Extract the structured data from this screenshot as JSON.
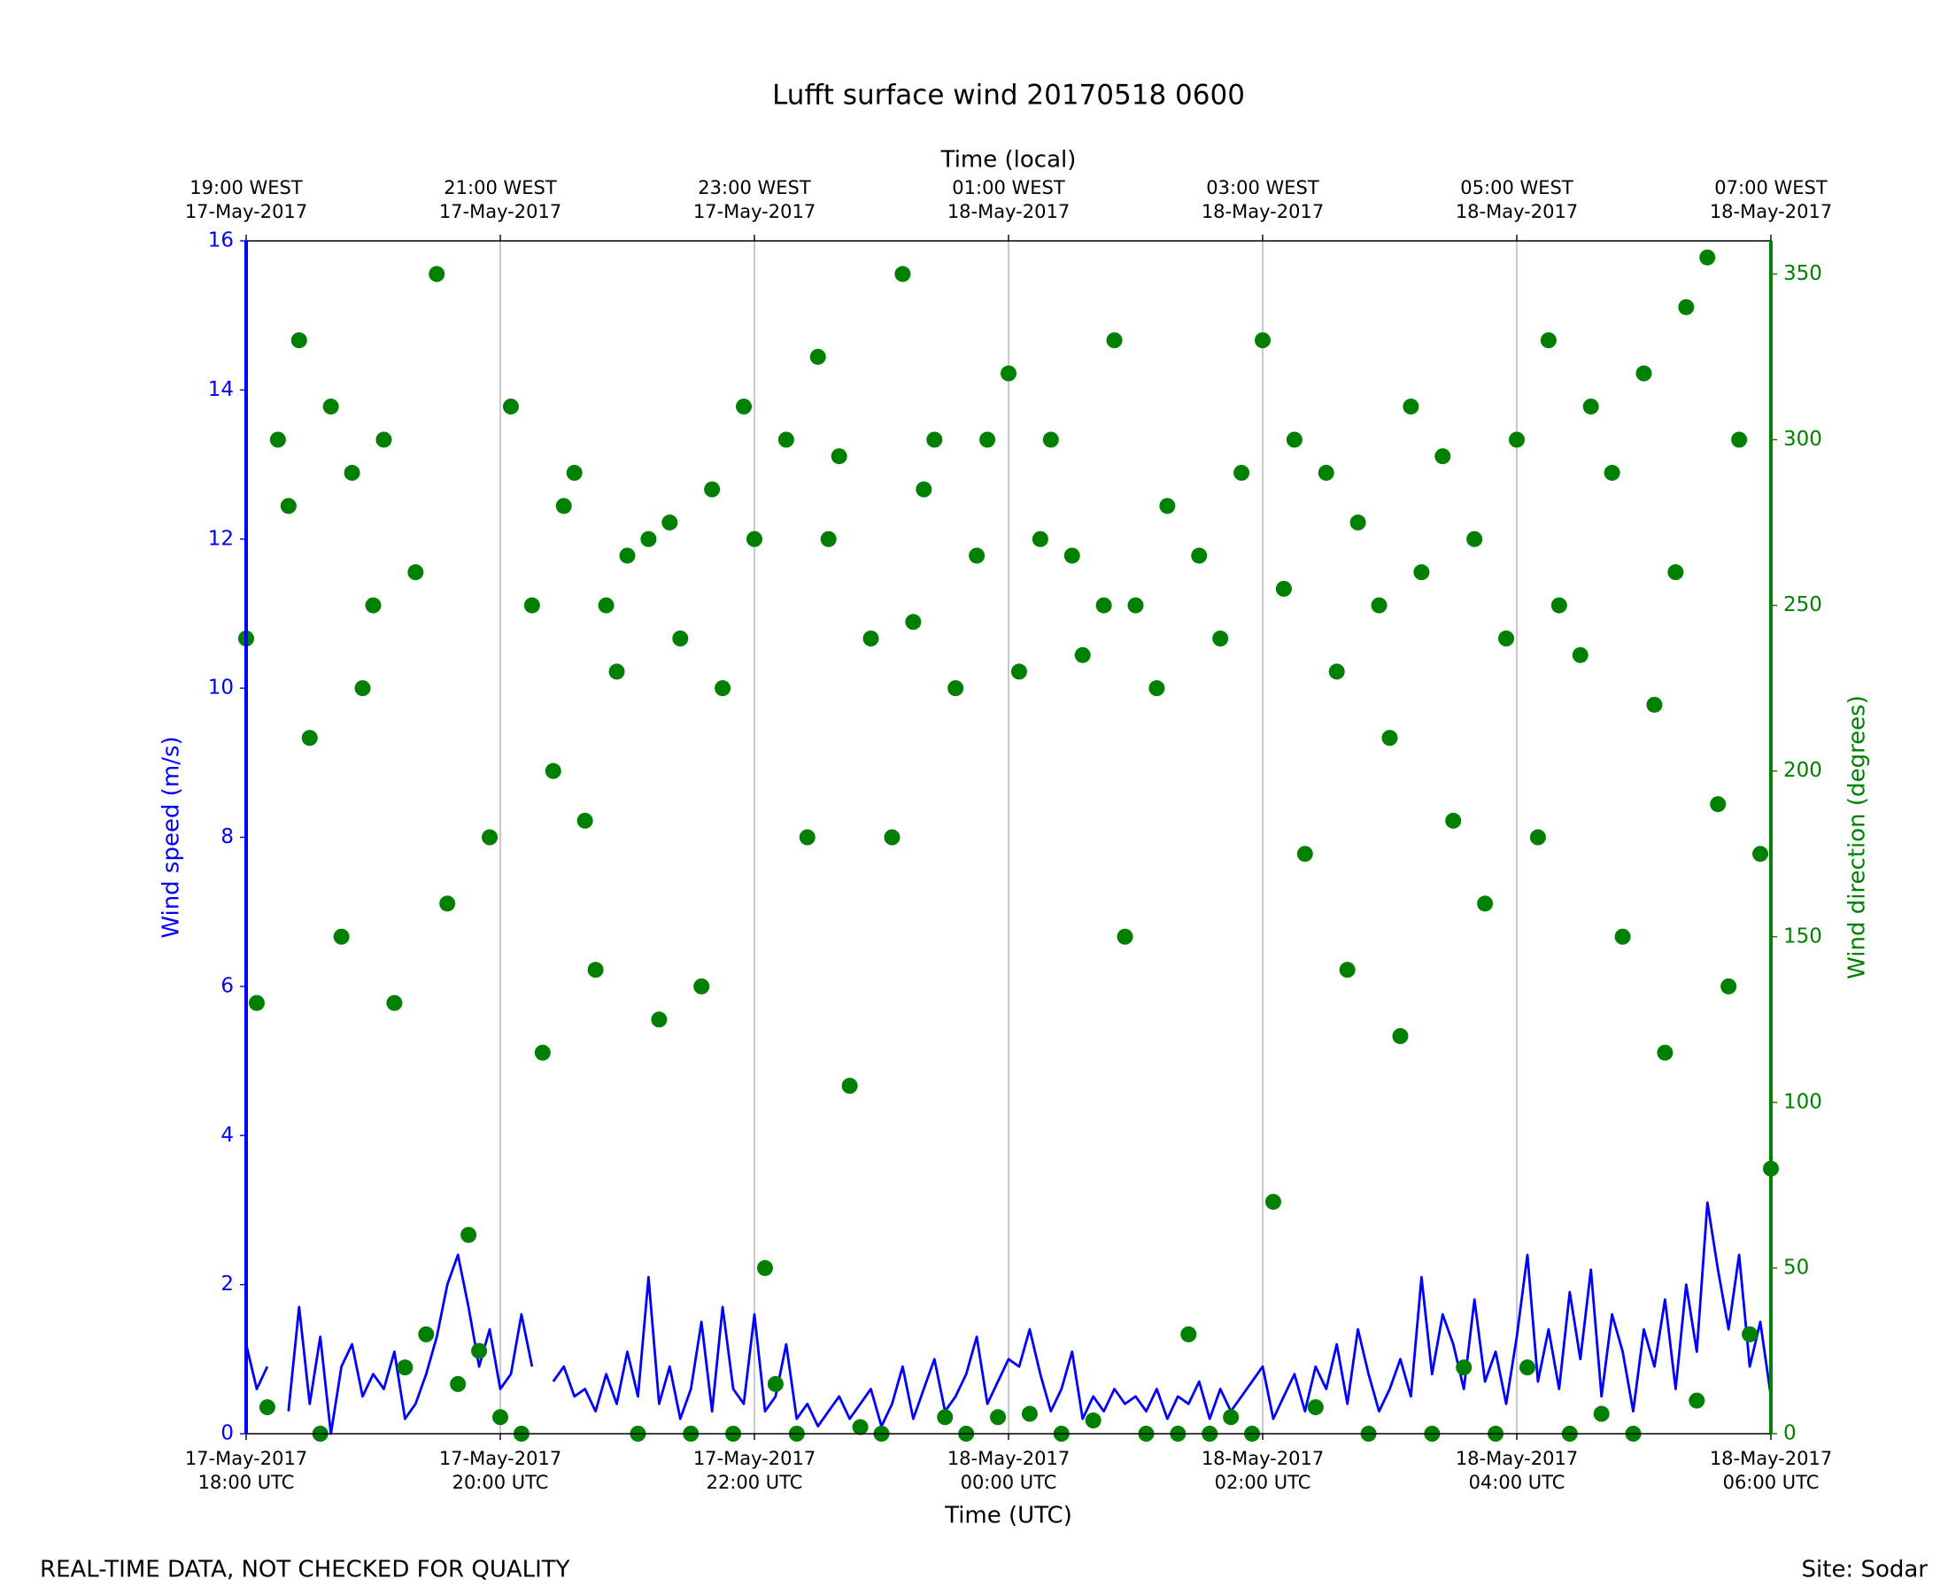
{
  "chart_data": {
    "type": "line",
    "title": "Lufft surface wind 20170518 0600",
    "xlabel": "Time (UTC)",
    "x2label": "Time (local)",
    "ylabel": "Wind speed (m/s)",
    "y2label": "Wind direction (degrees)",
    "footer_left": "REAL-TIME DATA, NOT CHECKED FOR QUALITY",
    "footer_right": "Site: Sodar",
    "xgrid": true,
    "xlim": [
      "2017-05-17 18:00",
      "2017-05-18 06:00"
    ],
    "xticks": [
      {
        "value": "2017-05-17 18:00",
        "label": [
          "17-May-2017",
          "18:00 UTC"
        ]
      },
      {
        "value": "2017-05-17 20:00",
        "label": [
          "17-May-2017",
          "20:00 UTC"
        ]
      },
      {
        "value": "2017-05-17 22:00",
        "label": [
          "17-May-2017",
          "22:00 UTC"
        ]
      },
      {
        "value": "2017-05-18 00:00",
        "label": [
          "18-May-2017",
          "00:00 UTC"
        ]
      },
      {
        "value": "2017-05-18 02:00",
        "label": [
          "18-May-2017",
          "02:00 UTC"
        ]
      },
      {
        "value": "2017-05-18 04:00",
        "label": [
          "18-May-2017",
          "04:00 UTC"
        ]
      },
      {
        "value": "2017-05-18 06:00",
        "label": [
          "18-May-2017",
          "06:00 UTC"
        ]
      }
    ],
    "x2ticks": [
      {
        "value": "2017-05-17 18:00",
        "label": [
          "19:00 WEST",
          "17-May-2017"
        ]
      },
      {
        "value": "2017-05-17 20:00",
        "label": [
          "21:00 WEST",
          "17-May-2017"
        ]
      },
      {
        "value": "2017-05-17 22:00",
        "label": [
          "23:00 WEST",
          "17-May-2017"
        ]
      },
      {
        "value": "2017-05-18 00:00",
        "label": [
          "01:00 WEST",
          "18-May-2017"
        ]
      },
      {
        "value": "2017-05-18 02:00",
        "label": [
          "03:00 WEST",
          "18-May-2017"
        ]
      },
      {
        "value": "2017-05-18 04:00",
        "label": [
          "05:00 WEST",
          "18-May-2017"
        ]
      },
      {
        "value": "2017-05-18 06:00",
        "label": [
          "07:00 WEST",
          "18-May-2017"
        ]
      }
    ],
    "ylim": [
      0,
      16
    ],
    "yticks": [
      0,
      2,
      4,
      6,
      8,
      10,
      12,
      14,
      16
    ],
    "y2lim": [
      0,
      360
    ],
    "y2ticks": [
      0,
      50,
      100,
      150,
      200,
      250,
      300,
      350
    ],
    "x": [
      "2017-05-17 18:00",
      "2017-05-17 18:05",
      "2017-05-17 18:10",
      "2017-05-17 18:15",
      "2017-05-17 18:20",
      "2017-05-17 18:25",
      "2017-05-17 18:30",
      "2017-05-17 18:35",
      "2017-05-17 18:40",
      "2017-05-17 18:45",
      "2017-05-17 18:50",
      "2017-05-17 18:55",
      "2017-05-17 19:00",
      "2017-05-17 19:05",
      "2017-05-17 19:10",
      "2017-05-17 19:15",
      "2017-05-17 19:20",
      "2017-05-17 19:25",
      "2017-05-17 19:30",
      "2017-05-17 19:35",
      "2017-05-17 19:40",
      "2017-05-17 19:45",
      "2017-05-17 19:50",
      "2017-05-17 19:55",
      "2017-05-17 20:00",
      "2017-05-17 20:05",
      "2017-05-17 20:10",
      "2017-05-17 20:15",
      "2017-05-17 20:20",
      "2017-05-17 20:25",
      "2017-05-17 20:30",
      "2017-05-17 20:35",
      "2017-05-17 20:40",
      "2017-05-17 20:45",
      "2017-05-17 20:50",
      "2017-05-17 20:55",
      "2017-05-17 21:00",
      "2017-05-17 21:05",
      "2017-05-17 21:10",
      "2017-05-17 21:15",
      "2017-05-17 21:20",
      "2017-05-17 21:25",
      "2017-05-17 21:30",
      "2017-05-17 21:35",
      "2017-05-17 21:40",
      "2017-05-17 21:45",
      "2017-05-17 21:50",
      "2017-05-17 21:55",
      "2017-05-17 22:00",
      "2017-05-17 22:05",
      "2017-05-17 22:10",
      "2017-05-17 22:15",
      "2017-05-17 22:20",
      "2017-05-17 22:25",
      "2017-05-17 22:30",
      "2017-05-17 22:35",
      "2017-05-17 22:40",
      "2017-05-17 22:45",
      "2017-05-17 22:50",
      "2017-05-17 22:55",
      "2017-05-17 23:00",
      "2017-05-17 23:05",
      "2017-05-17 23:10",
      "2017-05-17 23:15",
      "2017-05-17 23:20",
      "2017-05-17 23:25",
      "2017-05-17 23:30",
      "2017-05-17 23:35",
      "2017-05-17 23:40",
      "2017-05-17 23:45",
      "2017-05-17 23:50",
      "2017-05-17 23:55",
      "2017-05-18 00:00",
      "2017-05-18 00:05",
      "2017-05-18 00:10",
      "2017-05-18 00:15",
      "2017-05-18 00:20",
      "2017-05-18 00:25",
      "2017-05-18 00:30",
      "2017-05-18 00:35",
      "2017-05-18 00:40",
      "2017-05-18 00:45",
      "2017-05-18 00:50",
      "2017-05-18 00:55",
      "2017-05-18 01:00",
      "2017-05-18 01:05",
      "2017-05-18 01:10",
      "2017-05-18 01:15",
      "2017-05-18 01:20",
      "2017-05-18 01:25",
      "2017-05-18 01:30",
      "2017-05-18 01:35",
      "2017-05-18 01:40",
      "2017-05-18 01:45",
      "2017-05-18 01:50",
      "2017-05-18 01:55",
      "2017-05-18 02:00",
      "2017-05-18 02:05",
      "2017-05-18 02:10",
      "2017-05-18 02:15",
      "2017-05-18 02:20",
      "2017-05-18 02:25",
      "2017-05-18 02:30",
      "2017-05-18 02:35",
      "2017-05-18 02:40",
      "2017-05-18 02:45",
      "2017-05-18 02:50",
      "2017-05-18 02:55",
      "2017-05-18 03:00",
      "2017-05-18 03:05",
      "2017-05-18 03:10",
      "2017-05-18 03:15",
      "2017-05-18 03:20",
      "2017-05-18 03:25",
      "2017-05-18 03:30",
      "2017-05-18 03:35",
      "2017-05-18 03:40",
      "2017-05-18 03:45",
      "2017-05-18 03:50",
      "2017-05-18 03:55",
      "2017-05-18 04:00",
      "2017-05-18 04:05",
      "2017-05-18 04:10",
      "2017-05-18 04:15",
      "2017-05-18 04:20",
      "2017-05-18 04:25",
      "2017-05-18 04:30",
      "2017-05-18 04:35",
      "2017-05-18 04:40",
      "2017-05-18 04:45",
      "2017-05-18 04:50",
      "2017-05-18 04:55",
      "2017-05-18 05:00",
      "2017-05-18 05:05",
      "2017-05-18 05:10",
      "2017-05-18 05:15",
      "2017-05-18 05:20",
      "2017-05-18 05:25",
      "2017-05-18 05:30",
      "2017-05-18 05:35",
      "2017-05-18 05:40",
      "2017-05-18 05:45",
      "2017-05-18 05:50",
      "2017-05-18 05:55",
      "2017-05-18 06:00"
    ],
    "series": [
      {
        "name": "Wind speed",
        "style": "line",
        "axis": "y",
        "color": "#0000ff",
        "values": [
          1.2,
          0.6,
          0.9,
          null,
          0.3,
          1.7,
          0.4,
          1.3,
          0.0,
          0.9,
          1.2,
          0.5,
          0.8,
          0.6,
          1.1,
          0.2,
          0.4,
          0.8,
          1.3,
          2.0,
          2.4,
          1.7,
          0.9,
          1.4,
          0.6,
          0.8,
          1.6,
          0.9,
          null,
          0.7,
          0.9,
          0.5,
          0.6,
          0.3,
          0.8,
          0.4,
          1.1,
          0.5,
          2.1,
          0.4,
          0.9,
          0.2,
          0.6,
          1.5,
          0.3,
          1.7,
          0.6,
          0.4,
          1.6,
          0.3,
          0.5,
          1.2,
          0.2,
          0.4,
          0.1,
          0.3,
          0.5,
          0.2,
          0.4,
          0.6,
          0.1,
          0.4,
          0.9,
          0.2,
          0.6,
          1.0,
          0.3,
          0.5,
          0.8,
          1.3,
          0.4,
          0.7,
          1.0,
          0.9,
          1.4,
          0.8,
          0.3,
          0.6,
          1.1,
          0.2,
          0.5,
          0.3,
          0.6,
          0.4,
          0.5,
          0.3,
          0.6,
          0.2,
          0.5,
          0.4,
          0.7,
          0.2,
          0.6,
          0.3,
          0.5,
          0.7,
          0.9,
          0.2,
          0.5,
          0.8,
          0.3,
          0.9,
          0.6,
          1.2,
          0.4,
          1.4,
          0.8,
          0.3,
          0.6,
          1.0,
          0.5,
          2.1,
          0.8,
          1.6,
          1.2,
          0.6,
          1.8,
          0.7,
          1.1,
          0.4,
          1.3,
          2.4,
          0.7,
          1.4,
          0.6,
          1.9,
          1.0,
          2.2,
          0.5,
          1.6,
          1.1,
          0.3,
          1.4,
          0.9,
          1.8,
          0.6,
          2.0,
          1.1,
          3.1,
          2.2,
          1.4,
          2.4,
          0.9,
          1.5,
          0.5
        ]
      },
      {
        "name": "Wind direction",
        "style": "points",
        "axis": "y2",
        "color": "#008000",
        "values": [
          240,
          130,
          8,
          300,
          280,
          330,
          210,
          0,
          310,
          150,
          290,
          225,
          250,
          300,
          130,
          20,
          260,
          30,
          350,
          160,
          15,
          60,
          25,
          180,
          5,
          310,
          0,
          250,
          115,
          200,
          280,
          290,
          185,
          140,
          250,
          230,
          265,
          0,
          270,
          125,
          275,
          240,
          0,
          135,
          285,
          225,
          0,
          310,
          270,
          50,
          15,
          300,
          0,
          180,
          325,
          270,
          295,
          105,
          2,
          240,
          0,
          180,
          350,
          245,
          285,
          300,
          5,
          225,
          0,
          265,
          300,
          5,
          320,
          230,
          6,
          270,
          300,
          0,
          265,
          235,
          4,
          250,
          330,
          150,
          250,
          0,
          225,
          280,
          0,
          30,
          265,
          0,
          240,
          5,
          290,
          0,
          330,
          70,
          255,
          300,
          175,
          8,
          290,
          230,
          140,
          275,
          0,
          250,
          210,
          120,
          310,
          260,
          0,
          295,
          185,
          20,
          270,
          160,
          0,
          240,
          300,
          20,
          180,
          330,
          250,
          0,
          235,
          310,
          6,
          290,
          150,
          0,
          320,
          220,
          115,
          260,
          340,
          10,
          355,
          190,
          135,
          300,
          30,
          175,
          80
        ]
      }
    ]
  }
}
